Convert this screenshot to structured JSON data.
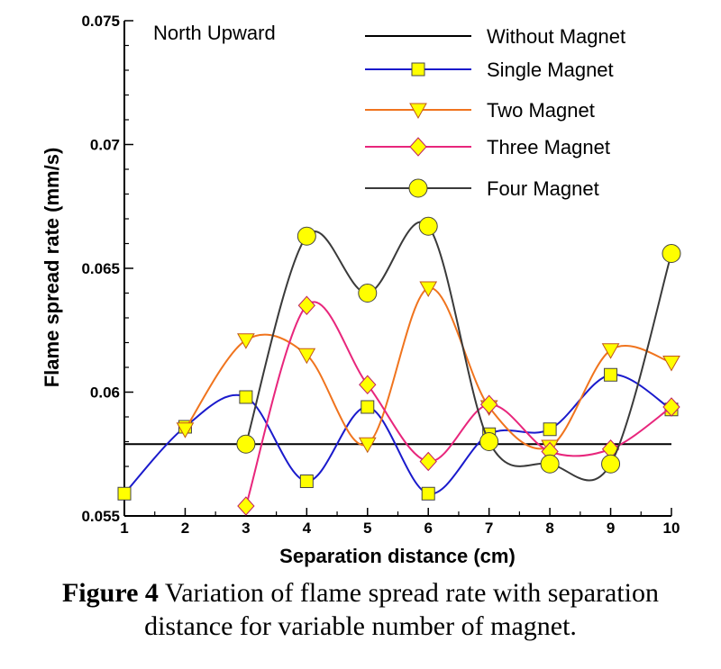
{
  "chart_data": {
    "type": "line",
    "annotation": "North Upward",
    "xlabel": "Separation distance (cm)",
    "ylabel": "Flame spread rate (mm/s)",
    "xlim": [
      1,
      10
    ],
    "ylim": [
      0.055,
      0.075
    ],
    "x_ticks": [
      "1",
      "2",
      "3",
      "4",
      "5",
      "6",
      "7",
      "8",
      "9",
      "10"
    ],
    "y_ticks": [
      "0.055",
      "0.06",
      "0.065",
      "0.07",
      "0.075"
    ],
    "grid": false,
    "legend_position": "top-right",
    "series": [
      {
        "name": "Without Magnet",
        "color": "#000000",
        "marker": "none",
        "x": [
          1,
          10
        ],
        "values": [
          0.0579,
          0.0579
        ]
      },
      {
        "name": "Single Magnet",
        "color": "#1a1acc",
        "marker": "square",
        "x": [
          1,
          2,
          3,
          4,
          5,
          6,
          7,
          8,
          9,
          10
        ],
        "values": [
          0.0559,
          0.0586,
          0.0598,
          0.0564,
          0.0594,
          0.0559,
          0.0583,
          0.0585,
          0.0607,
          0.0593
        ]
      },
      {
        "name": "Two Magnet",
        "color": "#f0741e",
        "marker": "triangle-down",
        "x": [
          2,
          3,
          4,
          5,
          6,
          7,
          8,
          9,
          10
        ],
        "values": [
          0.0585,
          0.0621,
          0.0615,
          0.0579,
          0.0642,
          0.0594,
          0.0578,
          0.0617,
          0.0612
        ]
      },
      {
        "name": "Three Magnet",
        "color": "#e8267c",
        "marker": "diamond",
        "x": [
          3,
          4,
          5,
          6,
          7,
          8,
          9,
          10
        ],
        "values": [
          0.0554,
          0.0635,
          0.0603,
          0.0572,
          0.0595,
          0.0576,
          0.0577,
          0.0594
        ]
      },
      {
        "name": "Four Magnet",
        "color": "#3a3a3a",
        "marker": "circle",
        "x": [
          3,
          4,
          5,
          6,
          7,
          8,
          9,
          10
        ],
        "values": [
          0.0579,
          0.0663,
          0.064,
          0.0667,
          0.058,
          0.0571,
          0.0571,
          0.0656
        ]
      }
    ]
  },
  "caption": {
    "label": "Figure 4",
    "line1": " Variation of flame spread rate with separation",
    "line2": "distance for variable number of magnet."
  },
  "marker_fill": "#ffff00"
}
